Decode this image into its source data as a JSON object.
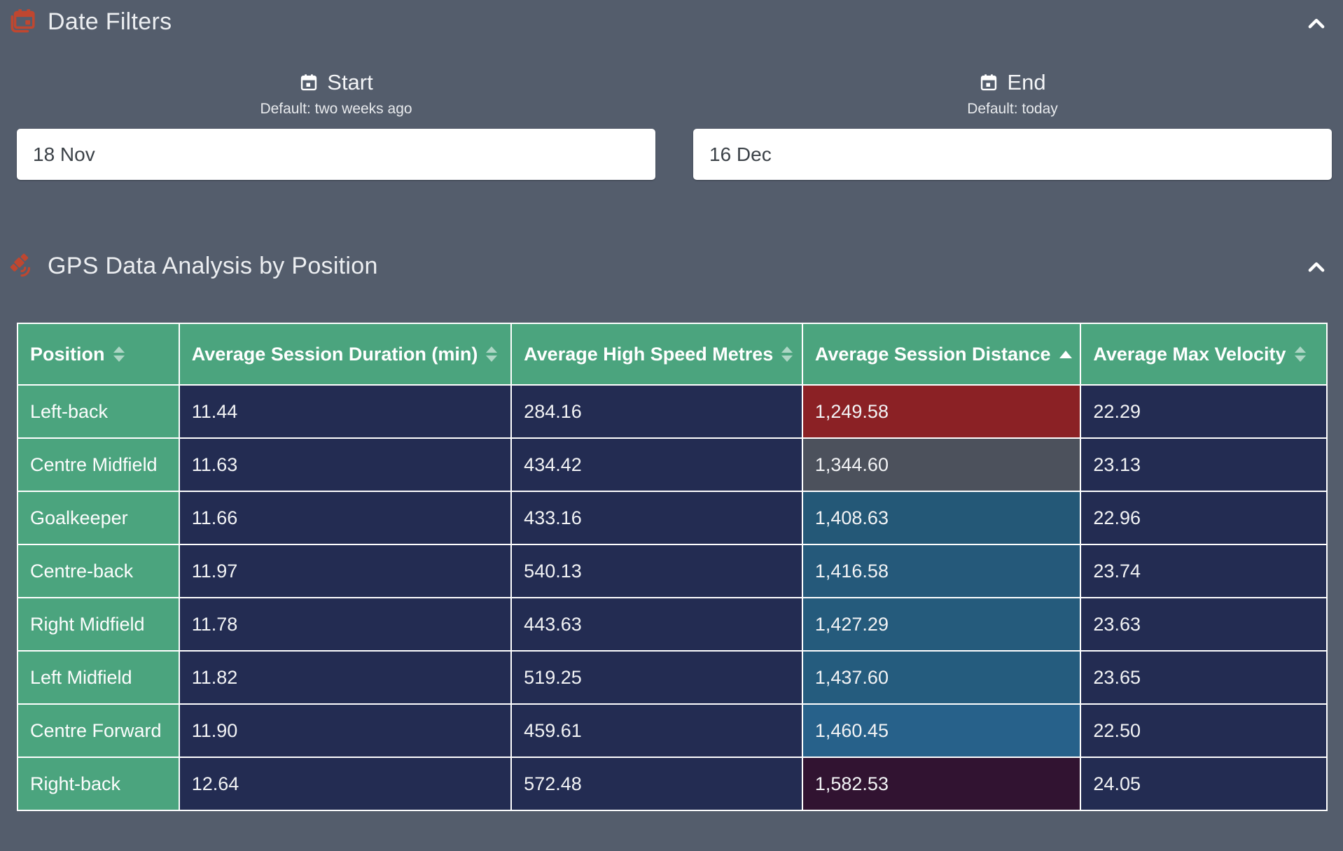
{
  "theme": {
    "background": "#545D6C",
    "accent_orange": "#BF4730",
    "table_green": "#4BA47E",
    "table_navy": "#232C52",
    "border_white": "#FFFFFF"
  },
  "date_filters": {
    "title": "Date Filters",
    "start": {
      "label": "Start",
      "hint": "Default: two weeks ago",
      "value": "18 Nov"
    },
    "end": {
      "label": "End",
      "hint": "Default: today",
      "value": "16 Dec"
    }
  },
  "gps_section": {
    "title": "GPS Data Analysis by Position",
    "table": {
      "columns": [
        {
          "label": "Position",
          "sort": "both"
        },
        {
          "label": "Average Session Duration (min)",
          "sort": "both"
        },
        {
          "label": "Average High Speed Metres",
          "sort": "both"
        },
        {
          "label": "Average Session Distance",
          "sort": "asc"
        },
        {
          "label": "Average Max Velocity",
          "sort": "both"
        }
      ],
      "rows": [
        {
          "position": "Left-back",
          "duration": "11.44",
          "high_speed": "284.16",
          "distance": "1,249.58",
          "velocity": "22.29",
          "distance_color": "#8B2125"
        },
        {
          "position": "Centre Midfield",
          "duration": "11.63",
          "high_speed": "434.42",
          "distance": "1,344.60",
          "velocity": "23.13",
          "distance_color": "#4C515C"
        },
        {
          "position": "Goalkeeper",
          "duration": "11.66",
          "high_speed": "433.16",
          "distance": "1,408.63",
          "velocity": "22.96",
          "distance_color": "#245877"
        },
        {
          "position": "Centre-back",
          "duration": "11.97",
          "high_speed": "540.13",
          "distance": "1,416.58",
          "velocity": "23.74",
          "distance_color": "#25597A"
        },
        {
          "position": "Right Midfield",
          "duration": "11.78",
          "high_speed": "443.63",
          "distance": "1,427.29",
          "velocity": "23.63",
          "distance_color": "#255B7C"
        },
        {
          "position": "Left Midfield",
          "duration": "11.82",
          "high_speed": "519.25",
          "distance": "1,437.60",
          "velocity": "23.65",
          "distance_color": "#255C7E"
        },
        {
          "position": "Centre Forward",
          "duration": "11.90",
          "high_speed": "459.61",
          "distance": "1,460.45",
          "velocity": "22.50",
          "distance_color": "#27618A"
        },
        {
          "position": "Right-back",
          "duration": "12.64",
          "high_speed": "572.48",
          "distance": "1,582.53",
          "velocity": "24.05",
          "distance_color": "#311331"
        }
      ]
    }
  }
}
